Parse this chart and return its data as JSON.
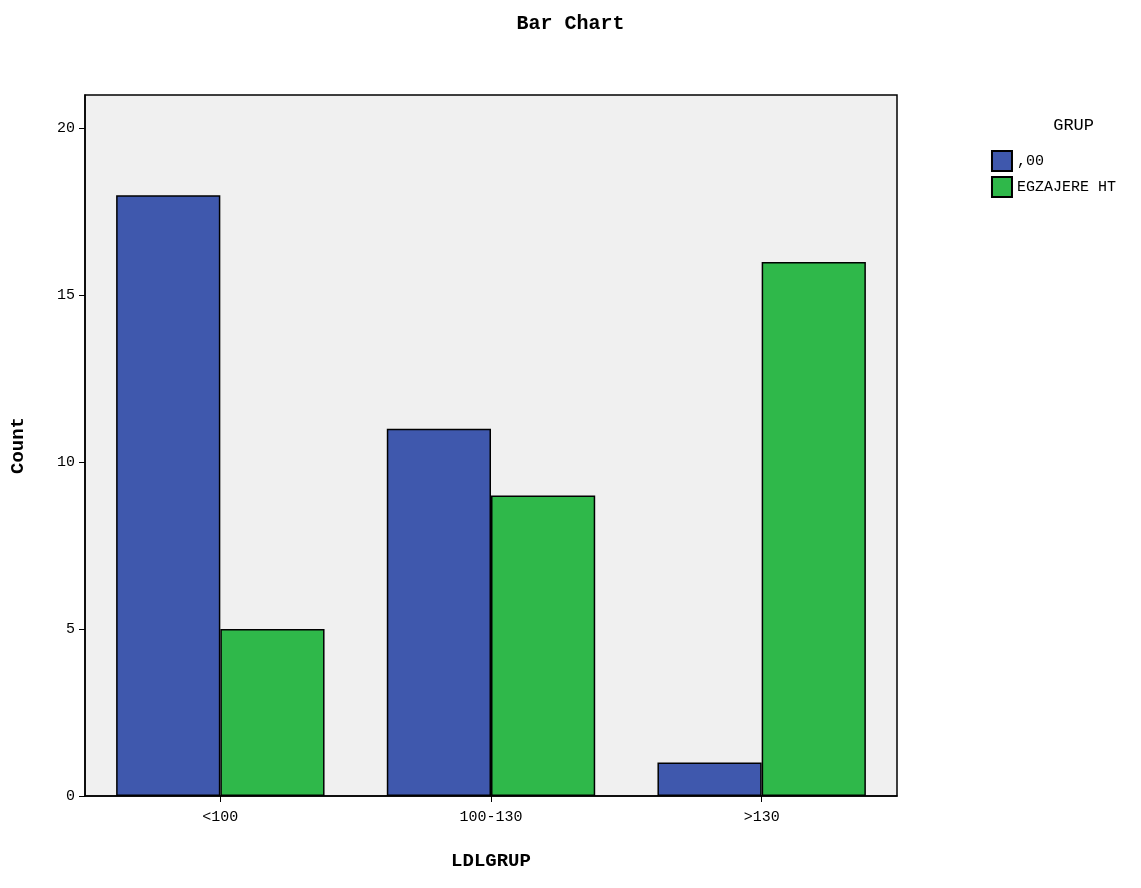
{
  "chart_data": {
    "type": "bar",
    "title": "Bar Chart",
    "xlabel": "LDLGRUP",
    "ylabel": "Count",
    "legend_title": "GRUP",
    "categories": [
      "<100",
      "100-130",
      ">130"
    ],
    "series": [
      {
        "name": ",00",
        "color": "#3f58ad",
        "values": [
          18,
          11,
          1
        ]
      },
      {
        "name": "EGZAJERE HT",
        "color": "#2fb84a",
        "values": [
          5,
          9,
          16
        ]
      }
    ],
    "ylim": [
      0,
      21
    ],
    "yticks": [
      0,
      5,
      10,
      15,
      20
    ],
    "grid": false,
    "legend": "top right"
  }
}
